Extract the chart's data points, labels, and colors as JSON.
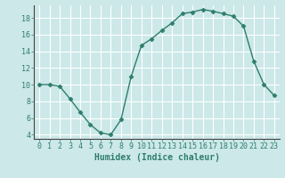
{
  "x": [
    0,
    1,
    2,
    3,
    4,
    5,
    6,
    7,
    8,
    9,
    10,
    11,
    12,
    13,
    14,
    15,
    16,
    17,
    18,
    19,
    20,
    21,
    22,
    23
  ],
  "y": [
    10,
    10,
    9.8,
    8.3,
    6.7,
    5.2,
    4.2,
    4.0,
    5.8,
    11.0,
    14.7,
    15.5,
    16.5,
    17.4,
    18.5,
    18.7,
    19.0,
    18.8,
    18.5,
    18.2,
    17.0,
    12.8,
    10.0,
    8.7
  ],
  "line_color": "#2e7d6e",
  "marker": "D",
  "marker_size": 2.5,
  "bg_color": "#cce8e8",
  "grid_color": "#ffffff",
  "xlabel": "Humidex (Indice chaleur)",
  "xlabel_fontsize": 7,
  "tick_fontsize": 6,
  "ylim": [
    3.5,
    19.5
  ],
  "yticks": [
    4,
    6,
    8,
    10,
    12,
    14,
    16,
    18
  ],
  "xticks": [
    0,
    1,
    2,
    3,
    4,
    5,
    6,
    7,
    8,
    9,
    10,
    11,
    12,
    13,
    14,
    15,
    16,
    17,
    18,
    19,
    20,
    21,
    22,
    23
  ],
  "line_width": 1.0
}
